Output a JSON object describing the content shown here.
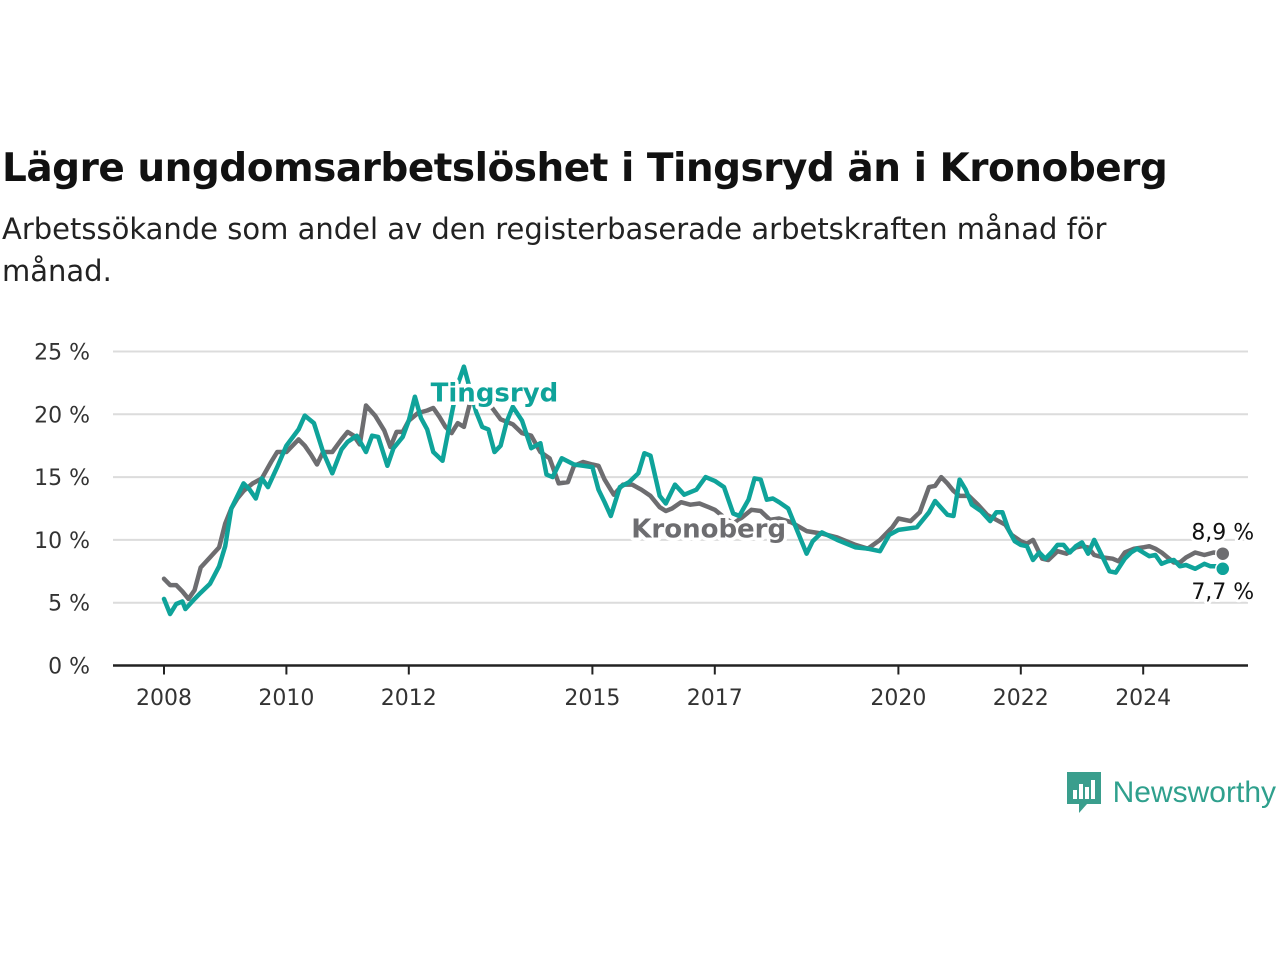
{
  "title": "Lägre ungdomsarbetslöshet i Tingsryd än i Kronoberg",
  "subtitle": "Arbetssökande som andel av den registerbaserade arbetskraften månad för månad.",
  "brand": {
    "name": "Newsworthy",
    "icon": "newsworthy-logo-icon",
    "color": "#3a9e8d"
  },
  "chart_data": {
    "type": "line",
    "title": "Lägre ungdomsarbetslöshet i Tingsryd än i Kronoberg",
    "ylim": [
      0,
      25
    ],
    "yticks": [
      0,
      5,
      10,
      15,
      20,
      25
    ],
    "ytick_labels": [
      "0 %",
      "5 %",
      "10 %",
      "15 %",
      "20 %",
      "25 %"
    ],
    "xlim": [
      2008,
      2025.5
    ],
    "xticks": [
      2008,
      2010,
      2012,
      2015,
      2017,
      2020,
      2022,
      2024
    ],
    "xtick_labels": [
      "2008",
      "2010",
      "2012",
      "2015",
      "2017",
      "2020",
      "2022",
      "2024"
    ],
    "grid": true,
    "legend": "inline labels",
    "series": [
      {
        "name": "Tingsryd",
        "color": "#0fa39a",
        "label_position": [
          2013.4,
          21.0
        ],
        "end_value": 7.7,
        "end_label": "7,7 %",
        "points": [
          [
            2008.0,
            5.3
          ],
          [
            2008.1,
            4.1
          ],
          [
            2008.2,
            4.9
          ],
          [
            2008.3,
            5.1
          ],
          [
            2008.35,
            4.5
          ],
          [
            2008.5,
            5.3
          ],
          [
            2008.6,
            5.8
          ],
          [
            2008.75,
            6.5
          ],
          [
            2008.9,
            7.9
          ],
          [
            2009.0,
            9.5
          ],
          [
            2009.1,
            12.5
          ],
          [
            2009.3,
            14.5
          ],
          [
            2009.4,
            14.0
          ],
          [
            2009.5,
            13.3
          ],
          [
            2009.6,
            14.9
          ],
          [
            2009.7,
            14.2
          ],
          [
            2009.85,
            15.8
          ],
          [
            2010.0,
            17.5
          ],
          [
            2010.2,
            18.8
          ],
          [
            2010.3,
            19.9
          ],
          [
            2010.45,
            19.3
          ],
          [
            2010.6,
            17.0
          ],
          [
            2010.75,
            15.3
          ],
          [
            2010.9,
            17.2
          ],
          [
            2011.0,
            17.8
          ],
          [
            2011.15,
            18.3
          ],
          [
            2011.3,
            17.0
          ],
          [
            2011.4,
            18.3
          ],
          [
            2011.5,
            18.2
          ],
          [
            2011.65,
            15.9
          ],
          [
            2011.75,
            17.3
          ],
          [
            2011.9,
            18.2
          ],
          [
            2012.0,
            19.5
          ],
          [
            2012.1,
            21.4
          ],
          [
            2012.2,
            19.7
          ],
          [
            2012.3,
            18.8
          ],
          [
            2012.4,
            17.0
          ],
          [
            2012.55,
            16.3
          ],
          [
            2012.7,
            20.0
          ],
          [
            2012.8,
            22.4
          ],
          [
            2012.9,
            23.8
          ],
          [
            2013.0,
            22.0
          ],
          [
            2013.1,
            20.2
          ],
          [
            2013.2,
            19.0
          ],
          [
            2013.3,
            18.8
          ],
          [
            2013.4,
            17.0
          ],
          [
            2013.5,
            17.5
          ],
          [
            2013.6,
            19.4
          ],
          [
            2013.7,
            20.6
          ],
          [
            2013.85,
            19.5
          ],
          [
            2014.0,
            17.3
          ],
          [
            2014.15,
            17.7
          ],
          [
            2014.25,
            15.2
          ],
          [
            2014.35,
            15.0
          ],
          [
            2014.5,
            16.5
          ],
          [
            2014.7,
            16.0
          ],
          [
            2014.85,
            15.9
          ],
          [
            2015.0,
            15.8
          ],
          [
            2015.1,
            14.0
          ],
          [
            2015.2,
            13.0
          ],
          [
            2015.3,
            11.9
          ],
          [
            2015.45,
            14.2
          ],
          [
            2015.6,
            14.6
          ],
          [
            2015.75,
            15.3
          ],
          [
            2015.85,
            16.9
          ],
          [
            2015.95,
            16.7
          ],
          [
            2016.1,
            13.5
          ],
          [
            2016.2,
            12.9
          ],
          [
            2016.35,
            14.4
          ],
          [
            2016.5,
            13.6
          ],
          [
            2016.7,
            14.0
          ],
          [
            2016.85,
            15.0
          ],
          [
            2017.0,
            14.7
          ],
          [
            2017.15,
            14.2
          ],
          [
            2017.3,
            12.1
          ],
          [
            2017.4,
            11.9
          ],
          [
            2017.55,
            13.2
          ],
          [
            2017.65,
            14.9
          ],
          [
            2017.75,
            14.8
          ],
          [
            2017.85,
            13.2
          ],
          [
            2017.95,
            13.3
          ],
          [
            2018.05,
            13.0
          ],
          [
            2018.2,
            12.5
          ],
          [
            2018.5,
            8.9
          ],
          [
            2018.6,
            9.9
          ],
          [
            2018.75,
            10.6
          ],
          [
            2019.0,
            10.0
          ],
          [
            2019.3,
            9.4
          ],
          [
            2019.5,
            9.3
          ],
          [
            2019.7,
            9.1
          ],
          [
            2019.85,
            10.4
          ],
          [
            2020.0,
            10.8
          ],
          [
            2020.3,
            11.0
          ],
          [
            2020.5,
            12.2
          ],
          [
            2020.6,
            13.1
          ],
          [
            2020.8,
            12.0
          ],
          [
            2020.9,
            11.9
          ],
          [
            2021.0,
            14.8
          ],
          [
            2021.1,
            14.0
          ],
          [
            2021.2,
            12.8
          ],
          [
            2021.35,
            12.3
          ],
          [
            2021.5,
            11.5
          ],
          [
            2021.6,
            12.2
          ],
          [
            2021.7,
            12.2
          ],
          [
            2021.8,
            10.8
          ],
          [
            2021.9,
            9.9
          ],
          [
            2022.0,
            9.6
          ],
          [
            2022.1,
            9.5
          ],
          [
            2022.2,
            8.4
          ],
          [
            2022.3,
            9.0
          ],
          [
            2022.4,
            8.5
          ],
          [
            2022.5,
            9.0
          ],
          [
            2022.6,
            9.6
          ],
          [
            2022.7,
            9.6
          ],
          [
            2022.8,
            9.0
          ],
          [
            2022.9,
            9.5
          ],
          [
            2023.0,
            9.8
          ],
          [
            2023.1,
            8.9
          ],
          [
            2023.2,
            10.0
          ],
          [
            2023.3,
            9.0
          ],
          [
            2023.45,
            7.5
          ],
          [
            2023.55,
            7.4
          ],
          [
            2023.7,
            8.5
          ],
          [
            2023.8,
            9.0
          ],
          [
            2023.9,
            9.3
          ],
          [
            2024.0,
            9.0
          ],
          [
            2024.1,
            8.7
          ],
          [
            2024.2,
            8.8
          ],
          [
            2024.3,
            8.1
          ],
          [
            2024.4,
            8.3
          ],
          [
            2024.5,
            8.4
          ],
          [
            2024.6,
            7.9
          ],
          [
            2024.7,
            8.0
          ],
          [
            2024.85,
            7.7
          ],
          [
            2025.0,
            8.1
          ],
          [
            2025.1,
            7.9
          ],
          [
            2025.2,
            7.9
          ],
          [
            2025.3,
            7.7
          ]
        ]
      },
      {
        "name": "Kronoberg",
        "color": "#6d6d70",
        "label_position": [
          2016.9,
          10.2
        ],
        "end_value": 8.9,
        "end_label": "8,9 %",
        "points": [
          [
            2008.0,
            6.9
          ],
          [
            2008.1,
            6.4
          ],
          [
            2008.2,
            6.4
          ],
          [
            2008.3,
            5.9
          ],
          [
            2008.4,
            5.3
          ],
          [
            2008.5,
            6.0
          ],
          [
            2008.6,
            7.8
          ],
          [
            2008.75,
            8.6
          ],
          [
            2008.9,
            9.4
          ],
          [
            2009.0,
            11.3
          ],
          [
            2009.1,
            12.5
          ],
          [
            2009.2,
            13.3
          ],
          [
            2009.3,
            13.9
          ],
          [
            2009.45,
            14.5
          ],
          [
            2009.6,
            14.9
          ],
          [
            2009.75,
            16.2
          ],
          [
            2009.85,
            17.0
          ],
          [
            2010.0,
            17.0
          ],
          [
            2010.1,
            17.5
          ],
          [
            2010.2,
            18.0
          ],
          [
            2010.3,
            17.5
          ],
          [
            2010.4,
            16.8
          ],
          [
            2010.5,
            16.0
          ],
          [
            2010.6,
            17.0
          ],
          [
            2010.75,
            17.0
          ],
          [
            2010.9,
            18.0
          ],
          [
            2011.0,
            18.6
          ],
          [
            2011.1,
            18.3
          ],
          [
            2011.2,
            17.6
          ],
          [
            2011.3,
            20.7
          ],
          [
            2011.45,
            19.9
          ],
          [
            2011.6,
            18.7
          ],
          [
            2011.7,
            17.4
          ],
          [
            2011.8,
            18.6
          ],
          [
            2011.9,
            18.6
          ],
          [
            2012.0,
            19.5
          ],
          [
            2012.15,
            20.1
          ],
          [
            2012.3,
            20.3
          ],
          [
            2012.4,
            20.5
          ],
          [
            2012.5,
            19.8
          ],
          [
            2012.6,
            19.0
          ],
          [
            2012.7,
            18.5
          ],
          [
            2012.8,
            19.3
          ],
          [
            2012.9,
            19.0
          ],
          [
            2013.0,
            20.9
          ],
          [
            2013.2,
            21.0
          ],
          [
            2013.35,
            20.6
          ],
          [
            2013.5,
            19.6
          ],
          [
            2013.7,
            19.2
          ],
          [
            2013.85,
            18.5
          ],
          [
            2014.0,
            18.3
          ],
          [
            2014.15,
            17.0
          ],
          [
            2014.3,
            16.5
          ],
          [
            2014.45,
            14.5
          ],
          [
            2014.6,
            14.6
          ],
          [
            2014.7,
            15.9
          ],
          [
            2014.85,
            16.2
          ],
          [
            2015.0,
            16.0
          ],
          [
            2015.1,
            15.9
          ],
          [
            2015.2,
            14.8
          ],
          [
            2015.35,
            13.6
          ],
          [
            2015.5,
            14.4
          ],
          [
            2015.65,
            14.4
          ],
          [
            2015.8,
            14.0
          ],
          [
            2015.95,
            13.5
          ],
          [
            2016.1,
            12.6
          ],
          [
            2016.2,
            12.3
          ],
          [
            2016.3,
            12.5
          ],
          [
            2016.45,
            13.0
          ],
          [
            2016.6,
            12.8
          ],
          [
            2016.75,
            12.9
          ],
          [
            2016.9,
            12.6
          ],
          [
            2017.0,
            12.4
          ],
          [
            2017.15,
            11.8
          ],
          [
            2017.3,
            11.3
          ],
          [
            2017.45,
            11.8
          ],
          [
            2017.6,
            12.4
          ],
          [
            2017.75,
            12.3
          ],
          [
            2017.9,
            11.6
          ],
          [
            2018.05,
            11.7
          ],
          [
            2018.25,
            11.4
          ],
          [
            2018.5,
            10.7
          ],
          [
            2018.75,
            10.5
          ],
          [
            2019.0,
            10.2
          ],
          [
            2019.3,
            9.6
          ],
          [
            2019.5,
            9.3
          ],
          [
            2019.7,
            10.0
          ],
          [
            2019.9,
            11.0
          ],
          [
            2020.0,
            11.7
          ],
          [
            2020.2,
            11.5
          ],
          [
            2020.35,
            12.2
          ],
          [
            2020.5,
            14.2
          ],
          [
            2020.6,
            14.3
          ],
          [
            2020.7,
            15.0
          ],
          [
            2020.8,
            14.5
          ],
          [
            2020.9,
            13.9
          ],
          [
            2021.0,
            13.5
          ],
          [
            2021.15,
            13.5
          ],
          [
            2021.3,
            12.8
          ],
          [
            2021.45,
            12.0
          ],
          [
            2021.6,
            11.6
          ],
          [
            2021.75,
            11.2
          ],
          [
            2021.85,
            10.4
          ],
          [
            2022.0,
            9.9
          ],
          [
            2022.1,
            9.7
          ],
          [
            2022.2,
            10.0
          ],
          [
            2022.35,
            8.5
          ],
          [
            2022.45,
            8.4
          ],
          [
            2022.6,
            9.1
          ],
          [
            2022.75,
            8.9
          ],
          [
            2022.9,
            9.4
          ],
          [
            2023.0,
            9.5
          ],
          [
            2023.1,
            9.4
          ],
          [
            2023.2,
            8.8
          ],
          [
            2023.35,
            8.6
          ],
          [
            2023.5,
            8.5
          ],
          [
            2023.6,
            8.3
          ],
          [
            2023.7,
            9.0
          ],
          [
            2023.85,
            9.3
          ],
          [
            2024.0,
            9.4
          ],
          [
            2024.1,
            9.5
          ],
          [
            2024.2,
            9.3
          ],
          [
            2024.3,
            9.0
          ],
          [
            2024.4,
            8.6
          ],
          [
            2024.5,
            8.2
          ],
          [
            2024.6,
            8.2
          ],
          [
            2024.7,
            8.6
          ],
          [
            2024.85,
            9.0
          ],
          [
            2025.0,
            8.8
          ],
          [
            2025.15,
            9.0
          ],
          [
            2025.3,
            8.9
          ]
        ]
      }
    ]
  }
}
